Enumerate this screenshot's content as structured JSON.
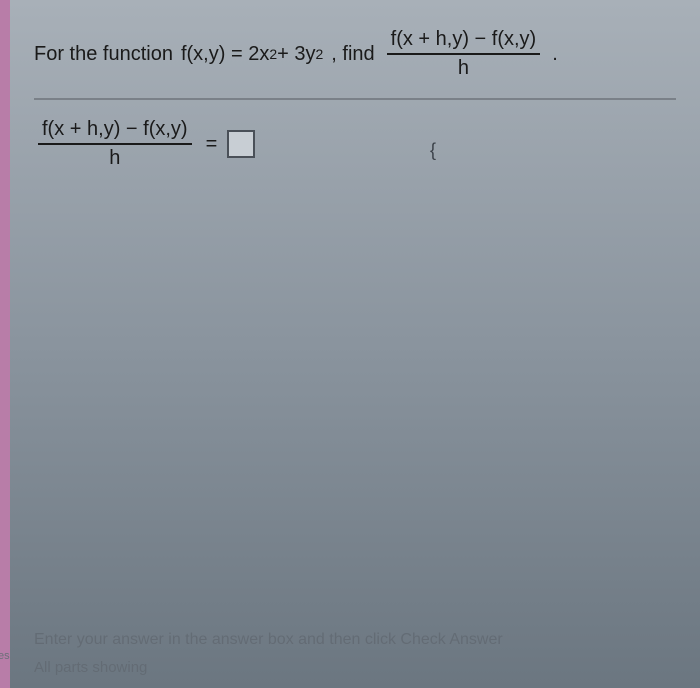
{
  "question": {
    "prefix": "For the function",
    "function_def": "f(x,y) = 2x² + 3y²",
    "after_func": ", find",
    "fraction_num": "f(x + h,y) − f(x,y)",
    "fraction_den": "h"
  },
  "answer": {
    "fraction_num": "f(x + h,y) − f(x,y)",
    "fraction_den": "h",
    "equals": "="
  },
  "footer": {
    "instruction": "Enter your answer in the answer box and then click Check Answer",
    "status": "All parts showing"
  },
  "decorations": {
    "cursor": "{",
    "side_label": "es"
  },
  "style": {
    "bg_top": "#a8b0b8",
    "bg_bottom": "#6b7680",
    "sidebar_color": "#b87da8",
    "text_color": "#1a1a1a",
    "divider_color": "#7a8088",
    "box_border": "#4a5058",
    "box_bg": "#c8ced4",
    "font_size_main": 20
  }
}
